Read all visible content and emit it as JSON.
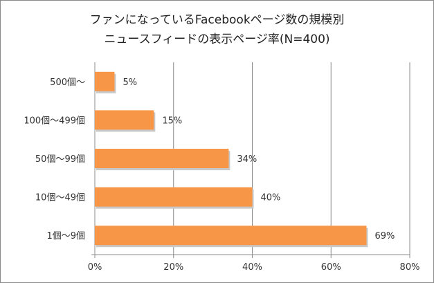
{
  "chart_data": {
    "type": "bar",
    "orientation": "horizontal",
    "title": "ファンになっているFacebookページ数の規模別",
    "subtitle": "ニュースフィードの表示ページ率(N=400)",
    "categories": [
      "500個〜",
      "100個〜499個",
      "50個〜99個",
      "10個〜49個",
      "1個〜9個"
    ],
    "values": [
      5,
      15,
      34,
      40,
      69
    ],
    "data_labels": [
      "5%",
      "15%",
      "34%",
      "40%",
      "69%"
    ],
    "xlim": [
      0,
      80
    ],
    "xticks": [
      0,
      20,
      40,
      60,
      80
    ],
    "xtick_labels": [
      "0%",
      "20%",
      "40%",
      "60%",
      "80%"
    ],
    "grid": true,
    "bar_color": "#f79646",
    "xlabel": "",
    "ylabel": ""
  }
}
